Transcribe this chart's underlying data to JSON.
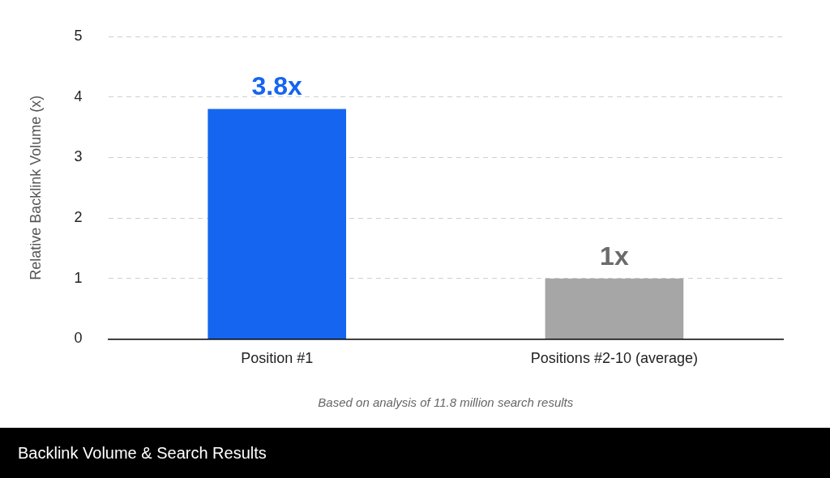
{
  "chart_data": {
    "type": "bar",
    "title": "Backlink Volume & Search Results",
    "ylabel": "Relative Backlink Volume (x)",
    "categories": [
      "Position #1",
      "Positions #2-10 (average)"
    ],
    "values": [
      3.8,
      1
    ],
    "colors": [
      "#1565f0",
      "#a6a6a6"
    ],
    "value_labels": [
      "3.8x",
      "1x"
    ],
    "ylim": [
      0,
      5
    ],
    "yticks": [
      0,
      1,
      2,
      3,
      4,
      5
    ],
    "grid": "y",
    "legend": false,
    "annotations": [
      "Based on analysis of 11.8 million search results"
    ]
  }
}
